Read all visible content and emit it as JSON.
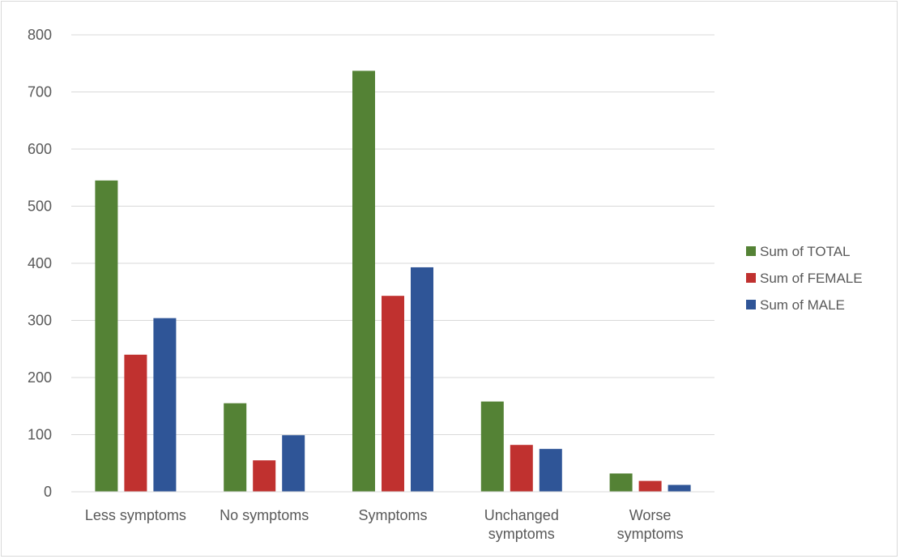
{
  "chart_data": {
    "type": "bar",
    "title": "",
    "xlabel": "",
    "ylabel": "",
    "categories": [
      "Less symptoms",
      "No symptoms",
      "Symptoms",
      "Unchanged symptoms",
      "Worse symptoms"
    ],
    "category_lines": [
      [
        "Less symptoms"
      ],
      [
        "No symptoms"
      ],
      [
        "Symptoms"
      ],
      [
        "Unchanged",
        "symptoms"
      ],
      [
        "Worse",
        "symptoms"
      ]
    ],
    "series": [
      {
        "name": "Sum of TOTAL",
        "color": "#548235",
        "values": [
          545,
          155,
          737,
          158,
          32
        ]
      },
      {
        "name": "Sum of FEMALE",
        "color": "#c0312f",
        "values": [
          240,
          55,
          343,
          82,
          19
        ]
      },
      {
        "name": "Sum of MALE",
        "color": "#2f5597",
        "values": [
          304,
          99,
          393,
          75,
          12
        ]
      }
    ],
    "ylim": [
      0,
      800
    ],
    "yticks": [
      0,
      100,
      200,
      300,
      400,
      500,
      600,
      700,
      800
    ],
    "grid": true,
    "legend": "right"
  }
}
